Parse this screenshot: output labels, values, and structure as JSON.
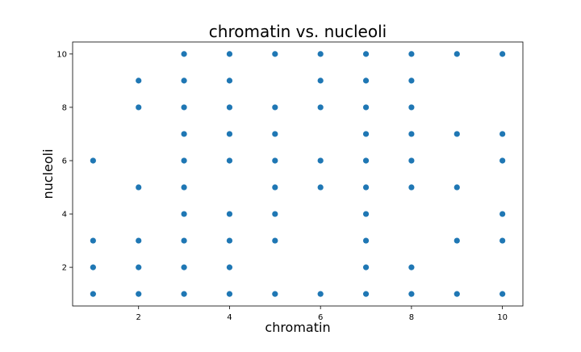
{
  "chart_data": {
    "type": "scatter",
    "title": "chromatin vs. nucleoli",
    "xlabel": "chromatin",
    "ylabel": "nucleoli",
    "xlim": [
      0.55,
      10.45
    ],
    "ylim": [
      0.55,
      10.45
    ],
    "xticks": [
      2,
      4,
      6,
      8,
      10
    ],
    "yticks": [
      2,
      4,
      6,
      8,
      10
    ],
    "grid": false,
    "marker_color": "#1f77b4",
    "series": [
      {
        "points": [
          [
            1,
            6
          ],
          [
            1,
            3
          ],
          [
            1,
            2
          ],
          [
            1,
            1
          ],
          [
            2,
            9
          ],
          [
            2,
            8
          ],
          [
            2,
            5
          ],
          [
            2,
            3
          ],
          [
            2,
            2
          ],
          [
            2,
            1
          ],
          [
            3,
            10
          ],
          [
            3,
            9
          ],
          [
            3,
            8
          ],
          [
            3,
            7
          ],
          [
            3,
            6
          ],
          [
            3,
            5
          ],
          [
            3,
            4
          ],
          [
            3,
            3
          ],
          [
            3,
            2
          ],
          [
            3,
            1
          ],
          [
            4,
            10
          ],
          [
            4,
            9
          ],
          [
            4,
            8
          ],
          [
            4,
            7
          ],
          [
            4,
            6
          ],
          [
            4,
            4
          ],
          [
            4,
            3
          ],
          [
            4,
            2
          ],
          [
            4,
            1
          ],
          [
            5,
            10
          ],
          [
            5,
            8
          ],
          [
            5,
            7
          ],
          [
            5,
            6
          ],
          [
            5,
            5
          ],
          [
            5,
            4
          ],
          [
            5,
            3
          ],
          [
            5,
            1
          ],
          [
            6,
            10
          ],
          [
            6,
            9
          ],
          [
            6,
            8
          ],
          [
            6,
            6
          ],
          [
            6,
            5
          ],
          [
            6,
            1
          ],
          [
            7,
            10
          ],
          [
            7,
            9
          ],
          [
            7,
            8
          ],
          [
            7,
            7
          ],
          [
            7,
            6
          ],
          [
            7,
            5
          ],
          [
            7,
            4
          ],
          [
            7,
            3
          ],
          [
            7,
            2
          ],
          [
            7,
            1
          ],
          [
            8,
            10
          ],
          [
            8,
            9
          ],
          [
            8,
            8
          ],
          [
            8,
            7
          ],
          [
            8,
            6
          ],
          [
            8,
            5
          ],
          [
            8,
            2
          ],
          [
            8,
            1
          ],
          [
            9,
            10
          ],
          [
            9,
            7
          ],
          [
            9,
            5
          ],
          [
            9,
            3
          ],
          [
            9,
            1
          ],
          [
            10,
            10
          ],
          [
            10,
            7
          ],
          [
            10,
            6
          ],
          [
            10,
            4
          ],
          [
            10,
            3
          ],
          [
            10,
            1
          ]
        ]
      }
    ]
  }
}
